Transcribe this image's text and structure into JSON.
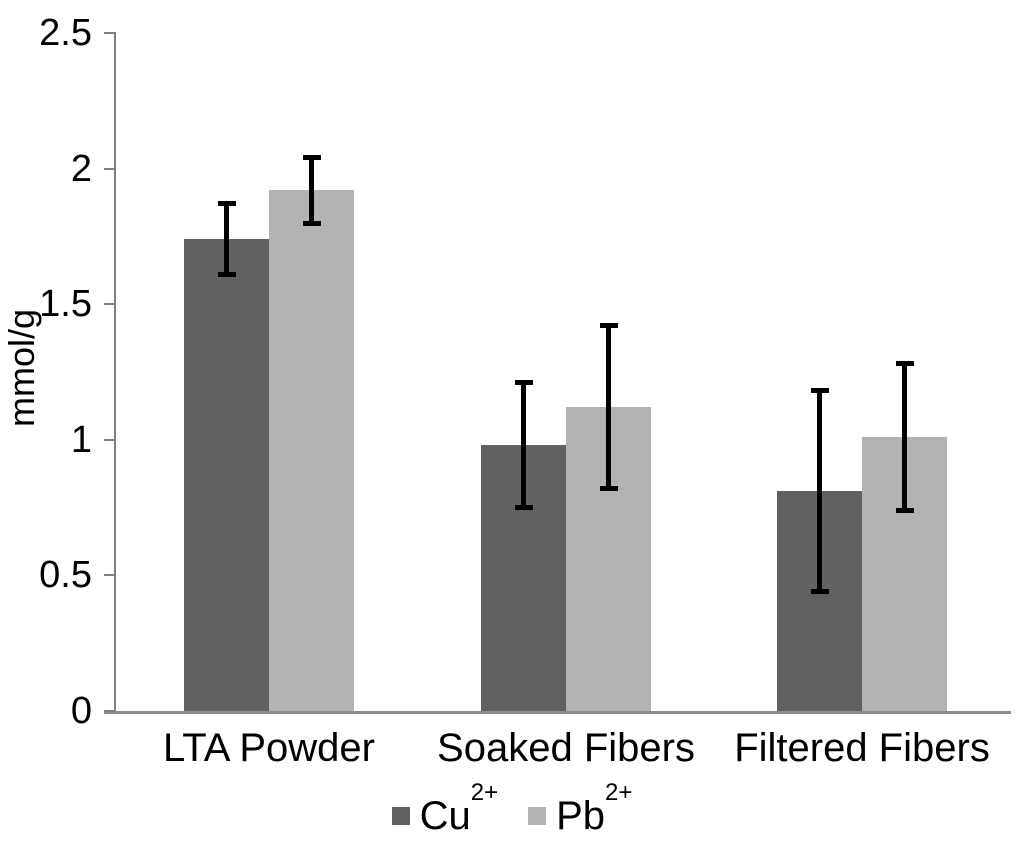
{
  "chart_data": {
    "type": "bar",
    "title": "",
    "xlabel": "",
    "ylabel": "mmol/g",
    "categories": [
      "LTA Powder",
      "Soaked Fibers",
      "Filtered Fibers"
    ],
    "series": [
      {
        "name": "Cu2+",
        "label_base": "Cu",
        "label_sup": "2+",
        "color": "#616161",
        "values": [
          1.74,
          0.98,
          0.81
        ],
        "errors": [
          0.14,
          0.24,
          0.38
        ]
      },
      {
        "name": "Pb2+",
        "label_base": "Pb",
        "label_sup": "2+",
        "color": "#b3b3b3",
        "values": [
          1.92,
          1.12,
          1.01
        ],
        "errors": [
          0.13,
          0.31,
          0.28
        ]
      }
    ],
    "ylim": [
      0,
      2.5
    ],
    "ytick_step": 0.5,
    "ytick_labels": [
      "0",
      "0.5",
      "1",
      "1.5",
      "2",
      "2.5"
    ],
    "grid": false,
    "legend_position": "bottom",
    "error_bar_color": "#000000",
    "axis_color": "#808080",
    "text_color": "#000000",
    "background_color": "#ffffff"
  }
}
